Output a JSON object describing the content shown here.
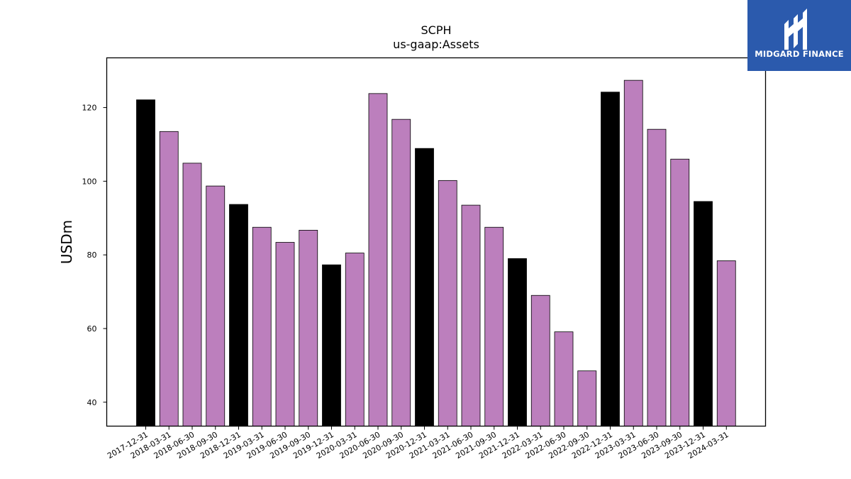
{
  "logo": {
    "text": "MIDGARD FINANCE",
    "icon": "midgard-logo-icon",
    "bg_color": "#2b5aad"
  },
  "chart_data": {
    "type": "bar",
    "title": "SCPH",
    "subtitle": "us-gaap:Assets",
    "xlabel": "",
    "ylabel": "USDm",
    "ylim": [
      33.5,
      133.5
    ],
    "yticks": [
      40,
      60,
      80,
      100,
      120
    ],
    "grid": false,
    "colors": {
      "annual": "#000000",
      "quarterly": "#bc7fbd"
    },
    "categories": [
      "2017-12-31",
      "2018-03-31",
      "2018-06-30",
      "2018-09-30",
      "2018-12-31",
      "2019-03-31",
      "2019-06-30",
      "2019-09-30",
      "2019-12-31",
      "2020-03-31",
      "2020-06-30",
      "2020-09-30",
      "2020-12-31",
      "2021-03-31",
      "2021-06-30",
      "2021-09-30",
      "2021-12-31",
      "2022-03-31",
      "2022-06-30",
      "2022-09-30",
      "2022-12-31",
      "2023-03-31",
      "2023-06-30",
      "2023-09-30",
      "2023-12-31",
      "2024-03-31"
    ],
    "values": [
      122.1,
      113.5,
      104.9,
      98.7,
      93.7,
      87.5,
      83.4,
      86.7,
      77.3,
      80.5,
      123.8,
      116.8,
      108.9,
      100.2,
      93.5,
      87.5,
      79.0,
      69.0,
      59.1,
      48.5,
      124.2,
      127.4,
      114.1,
      106.0,
      94.5,
      78.4
    ],
    "period_type": [
      "annual",
      "quarterly",
      "quarterly",
      "quarterly",
      "annual",
      "quarterly",
      "quarterly",
      "quarterly",
      "annual",
      "quarterly",
      "quarterly",
      "quarterly",
      "annual",
      "quarterly",
      "quarterly",
      "quarterly",
      "annual",
      "quarterly",
      "quarterly",
      "quarterly",
      "annual",
      "quarterly",
      "quarterly",
      "quarterly",
      "annual",
      "quarterly"
    ]
  }
}
